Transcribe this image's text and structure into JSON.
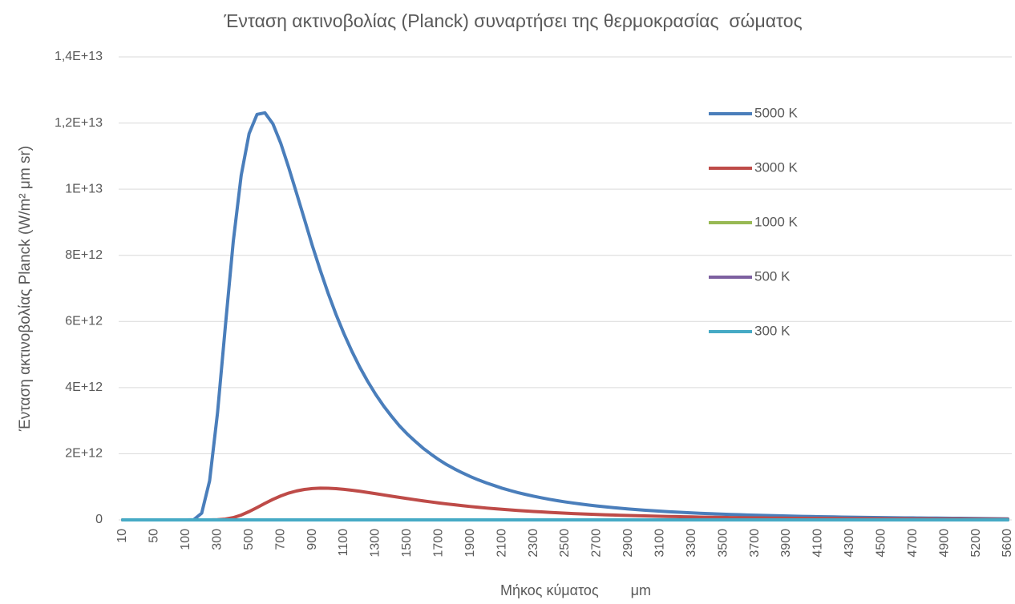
{
  "chart_data": {
    "type": "line",
    "title": "Ένταση ακτινοβολίας (Planck) συναρτήσει της θερμοκρασίας  σώματος",
    "x_label": "Μήκος κύματος        μm",
    "y_label": "Ένταση ακτινοβολίας Planck (W/m² μm sr)",
    "categories": [
      10,
      null,
      null,
      null,
      50,
      null,
      null,
      null,
      100,
      null,
      null,
      null,
      300,
      null,
      null,
      null,
      500,
      null,
      null,
      null,
      700,
      null,
      null,
      null,
      900,
      null,
      null,
      null,
      1100,
      null,
      null,
      null,
      1300,
      null,
      null,
      null,
      1500,
      null,
      null,
      null,
      1700,
      null,
      null,
      null,
      1900,
      null,
      null,
      null,
      2100,
      null,
      null,
      null,
      2300,
      null,
      null,
      null,
      2500,
      null,
      null,
      null,
      2700,
      null,
      null,
      null,
      2900,
      null,
      null,
      null,
      3100,
      null,
      null,
      null,
      3300,
      null,
      null,
      null,
      3500,
      null,
      null,
      null,
      3700,
      null,
      null,
      null,
      3900,
      null,
      null,
      null,
      4100,
      null,
      null,
      null,
      4300,
      null,
      null,
      null,
      4500,
      null,
      null,
      null,
      4700,
      null,
      null,
      null,
      4900,
      null,
      null,
      null,
      5200,
      null,
      null,
      null,
      5600
    ],
    "series": [
      {
        "name": "5000 K",
        "color": "#4a7ebb",
        "values": [
          0,
          0,
          0,
          0,
          0,
          0,
          0,
          0,
          0,
          7100000000.0,
          203000000000.0,
          1180000000000.0,
          3230000000000.0,
          5870000000000.0,
          8430000000000.0,
          10420000000000.0,
          11680000000000.0,
          12260000000000.0,
          12310000000000.0,
          11980000000000.0,
          11390000000000.0,
          10660000000000.0,
          9880000000000.0,
          9090000000000.0,
          8290000000000.0,
          7550000000000.0,
          6850000000000.0,
          6210000000000.0,
          5630000000000.0,
          5100000000000.0,
          4620000000000.0,
          4190000000000.0,
          3800000000000.0,
          3450000000000.0,
          3140000000000.0,
          2850000000000.0,
          2600000000000.0,
          2380000000000.0,
          2170000000000.0,
          1990000000000.0,
          1820000000000.0,
          1670000000000.0,
          1540000000000.0,
          1420000000000.0,
          1310000000000.0,
          1210000000000.0,
          1120000000000.0,
          1040000000000.0,
          958000000000.0,
          890000000000.0,
          826000000000.0,
          769000000000.0,
          716000000000.0,
          668000000000.0,
          623000000000.0,
          582000000000.0,
          544000000000.0,
          510000000000.0,
          478000000000.0,
          449000000000.0,
          422000000000.0,
          396000000000.0,
          372000000000.0,
          351000000000.0,
          331000000000.0,
          312000000000.0,
          294000000000.0,
          278000000000.0,
          263000000000.0,
          249000000000.0,
          236000000000.0,
          224000000000.0,
          212000000000.0,
          201000000000.0,
          191000000000.0,
          181000000000.0,
          172000000000.0,
          164000000000.0,
          156000000000.0,
          149000000000.0,
          142000000000.0,
          135000000000.0,
          129000000000.0,
          123000000000.0,
          118000000000.0,
          112000000000.0,
          107000000000.0,
          102000000000.0,
          98000000000.0,
          94000000000.0,
          90000000000.0,
          86000000000.0,
          82000000000.0,
          79000000000.0,
          75000000000.0,
          72000000000.0,
          69500000000.0,
          67000000000.0,
          64000000000.0,
          62000000000.0,
          59000000000.0,
          57000000000.0,
          55000000000.0,
          53000000000.0,
          51000000000.0,
          49000000000.0,
          47000000000.0,
          45000000000.0,
          41000000000.0,
          38000000000.0,
          35000000000.0,
          33000000000.0,
          31000000000.0
        ]
      },
      {
        "name": "3000 K",
        "color": "#be4b48",
        "values": [
          0,
          0,
          0,
          0,
          0,
          0,
          0,
          0,
          0,
          0,
          0,
          0,
          5400000000.0,
          24600000000.0,
          69700000000.0,
          146000000000.0,
          251000000000.0,
          372000000000.0,
          499000000000.0,
          619000000000.0,
          724000000000.0,
          811000000000.0,
          875000000000.0,
          921000000000.0,
          948000000000.0,
          960000000000.0,
          958000000000.0,
          945000000000.0,
          923000000000.0,
          897000000000.0,
          865000000000.0,
          829000000000.0,
          794000000000.0,
          756000000000.0,
          718000000000.0,
          681000000000.0,
          645000000000.0,
          610000000000.0,
          576000000000.0,
          543000000000.0,
          512000000000.0,
          483000000000.0,
          456000000000.0,
          429000000000.0,
          404000000000.0,
          381000000000.0,
          359000000000.0,
          339000000000.0,
          320000000000.0,
          302000000000.0,
          284000000000.0,
          269000000000.0,
          255000000000.0,
          241000000000.0,
          227000000000.0,
          215000000000.0,
          203000000000.0,
          192000000000.0,
          181000000000.0,
          172000000000.0,
          163000000000.0,
          155000000000.0,
          147000000000.0,
          140000000000.0,
          133000000000.0,
          126000000000.0,
          120000000000.0,
          114000000000.0,
          109000000000.0,
          104000000000.0,
          99000000000.0,
          94000000000.0,
          90000000000.0,
          86000000000.0,
          82000000000.0,
          78000000000.0,
          74500000000.0,
          71000000000.0,
          68000000000.0,
          65000000000.0,
          62000000000.0,
          59000000000.0,
          56000000000.0,
          54000000000.0,
          52000000000.0,
          50000000000.0,
          48400000000.0,
          46500000000.0,
          44500000000.0,
          42700000000.0,
          41000000000.0,
          39300000000.0,
          37700000000.0,
          36200000000.0,
          34800000000.0,
          33700000000.0,
          32700000000.0,
          31500000000.0,
          30300000000.0,
          29200000000.0,
          28100000000.0,
          27100000000.0,
          26100000000.0,
          25200000000.0,
          24300000000.0,
          23600000000.0,
          22900000000.0,
          22000000000.0,
          20200000000.0,
          19000000000.0,
          17500000000.0,
          16500000000.0,
          15400000000.0
        ]
      },
      {
        "name": "1000 K",
        "color": "#98b954",
        "values": [
          0,
          0,
          0,
          0,
          0,
          0,
          0,
          0,
          0,
          0,
          0,
          0,
          0,
          0,
          0,
          0,
          0,
          0,
          0,
          0,
          0,
          0,
          0,
          0,
          0,
          0,
          0,
          0,
          0,
          0,
          0,
          0,
          0,
          0,
          0,
          0,
          0,
          0,
          0,
          0,
          0,
          0,
          0,
          0,
          0,
          0,
          0,
          0,
          0,
          0,
          0,
          0,
          0,
          0,
          0,
          0,
          0,
          0,
          0,
          0,
          0,
          0,
          0,
          0,
          0,
          0,
          0,
          0,
          0,
          0,
          0,
          0,
          0,
          0,
          0,
          0,
          0,
          0,
          0,
          0,
          0,
          0,
          0,
          0,
          0,
          0,
          0,
          0,
          0,
          0,
          0,
          0,
          0,
          0,
          0,
          0,
          0,
          0,
          0,
          0,
          0,
          0,
          0,
          0,
          0,
          0,
          0,
          0,
          0,
          0,
          0,
          0,
          0
        ]
      },
      {
        "name": "500 K",
        "color": "#7d60a0",
        "values": [
          0,
          0,
          0,
          0,
          0,
          0,
          0,
          0,
          0,
          0,
          0,
          0,
          0,
          0,
          0,
          0,
          0,
          0,
          0,
          0,
          0,
          0,
          0,
          0,
          0,
          0,
          0,
          0,
          0,
          0,
          0,
          0,
          0,
          0,
          0,
          0,
          0,
          0,
          0,
          0,
          0,
          0,
          0,
          0,
          0,
          0,
          0,
          0,
          0,
          0,
          0,
          0,
          0,
          0,
          0,
          0,
          0,
          0,
          0,
          0,
          0,
          0,
          0,
          0,
          0,
          0,
          0,
          0,
          0,
          0,
          0,
          0,
          0,
          0,
          0,
          0,
          0,
          0,
          0,
          0,
          0,
          0,
          0,
          0,
          0,
          0,
          0,
          0,
          0,
          0,
          0,
          0,
          0,
          0,
          0,
          0,
          0,
          0,
          0,
          0,
          0,
          0,
          0,
          0,
          0,
          0,
          0,
          0,
          0,
          0,
          0,
          0,
          0
        ]
      },
      {
        "name": "300 K",
        "color": "#46aac5",
        "values": [
          0,
          0,
          0,
          0,
          0,
          0,
          0,
          0,
          0,
          0,
          0,
          0,
          0,
          0,
          0,
          0,
          0,
          0,
          0,
          0,
          0,
          0,
          0,
          0,
          0,
          0,
          0,
          0,
          0,
          0,
          0,
          0,
          0,
          0,
          0,
          0,
          0,
          0,
          0,
          0,
          0,
          0,
          0,
          0,
          0,
          0,
          0,
          0,
          0,
          0,
          0,
          0,
          0,
          0,
          0,
          0,
          0,
          0,
          0,
          0,
          0,
          0,
          0,
          0,
          0,
          0,
          0,
          0,
          0,
          0,
          0,
          0,
          0,
          0,
          0,
          0,
          0,
          0,
          0,
          0,
          0,
          0,
          0,
          0,
          0,
          0,
          0,
          0,
          0,
          0,
          0,
          0,
          0,
          0,
          0,
          0,
          0,
          0,
          0,
          0,
          0,
          0,
          0,
          0,
          0,
          0,
          0,
          0,
          0,
          0,
          0,
          0,
          0
        ]
      }
    ],
    "ylim": [
      0,
      14000000000000.0
    ],
    "yticks": [
      0,
      {
        "value": 2000000000000.0,
        "label": "2E+12"
      },
      {
        "value": 4000000000000.0,
        "label": "4E+12"
      },
      {
        "value": 6000000000000.0,
        "label": "6E+12"
      },
      {
        "value": 8000000000000.0,
        "label": "8E+12"
      },
      {
        "value": 10000000000000.0,
        "label": "1E+13"
      },
      {
        "value": 12000000000000.0,
        "label": "1,2E+13"
      },
      {
        "value": 14000000000000.0,
        "label": "1,4E+13"
      }
    ],
    "grid": true,
    "legend": "right"
  }
}
